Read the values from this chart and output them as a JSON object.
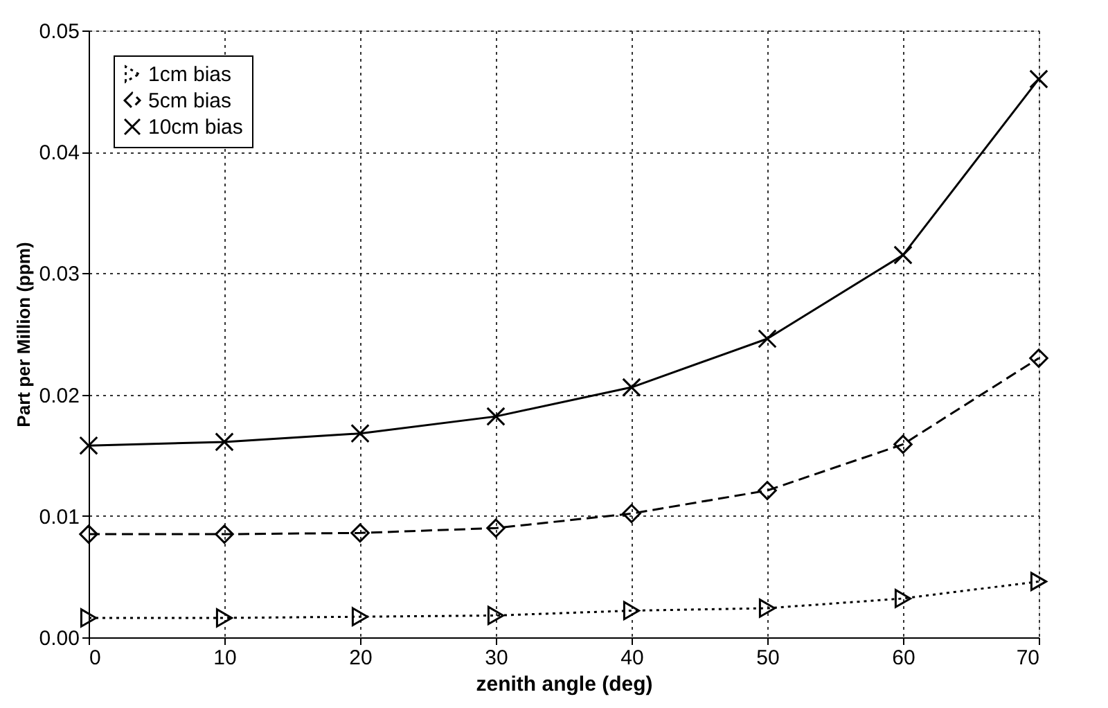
{
  "chart_data": {
    "type": "line",
    "xlabel": "zenith angle (deg)",
    "ylabel": "Part per Million (ppm)",
    "x": [
      0,
      10,
      20,
      30,
      40,
      50,
      60,
      70
    ],
    "series": [
      {
        "name": "1cm bias",
        "color": "#000000",
        "marker": "triangle",
        "line_style": "dotted",
        "values": [
          0.0016,
          0.0016,
          0.0017,
          0.0018,
          0.0022,
          0.0024,
          0.0032,
          0.0046
        ]
      },
      {
        "name": "5cm bias",
        "color": "#000000",
        "marker": "diamond",
        "line_style": "dashed",
        "values": [
          0.0085,
          0.0085,
          0.0086,
          0.009,
          0.0102,
          0.0121,
          0.0159,
          0.023
        ]
      },
      {
        "name": "10cm bias",
        "color": "#000000",
        "marker": "cross",
        "line_style": "solid",
        "values": [
          0.0158,
          0.0161,
          0.0168,
          0.0182,
          0.0206,
          0.0246,
          0.0315,
          0.046
        ]
      }
    ],
    "xlim": [
      0,
      70
    ],
    "xticks": [
      0,
      10,
      20,
      30,
      40,
      50,
      60,
      70
    ],
    "ylim": [
      0,
      0.05
    ],
    "yticks": [
      {
        "value": 0,
        "label": "0.00"
      },
      {
        "value": 0.01,
        "label": "0.01"
      },
      {
        "value": 0.02,
        "label": "0.02"
      },
      {
        "value": 0.03,
        "label": "0.03"
      },
      {
        "value": 0.04,
        "label": "0.04"
      },
      {
        "value": 0.05,
        "label": "0.05"
      }
    ],
    "grid": true,
    "legend": "top left"
  }
}
